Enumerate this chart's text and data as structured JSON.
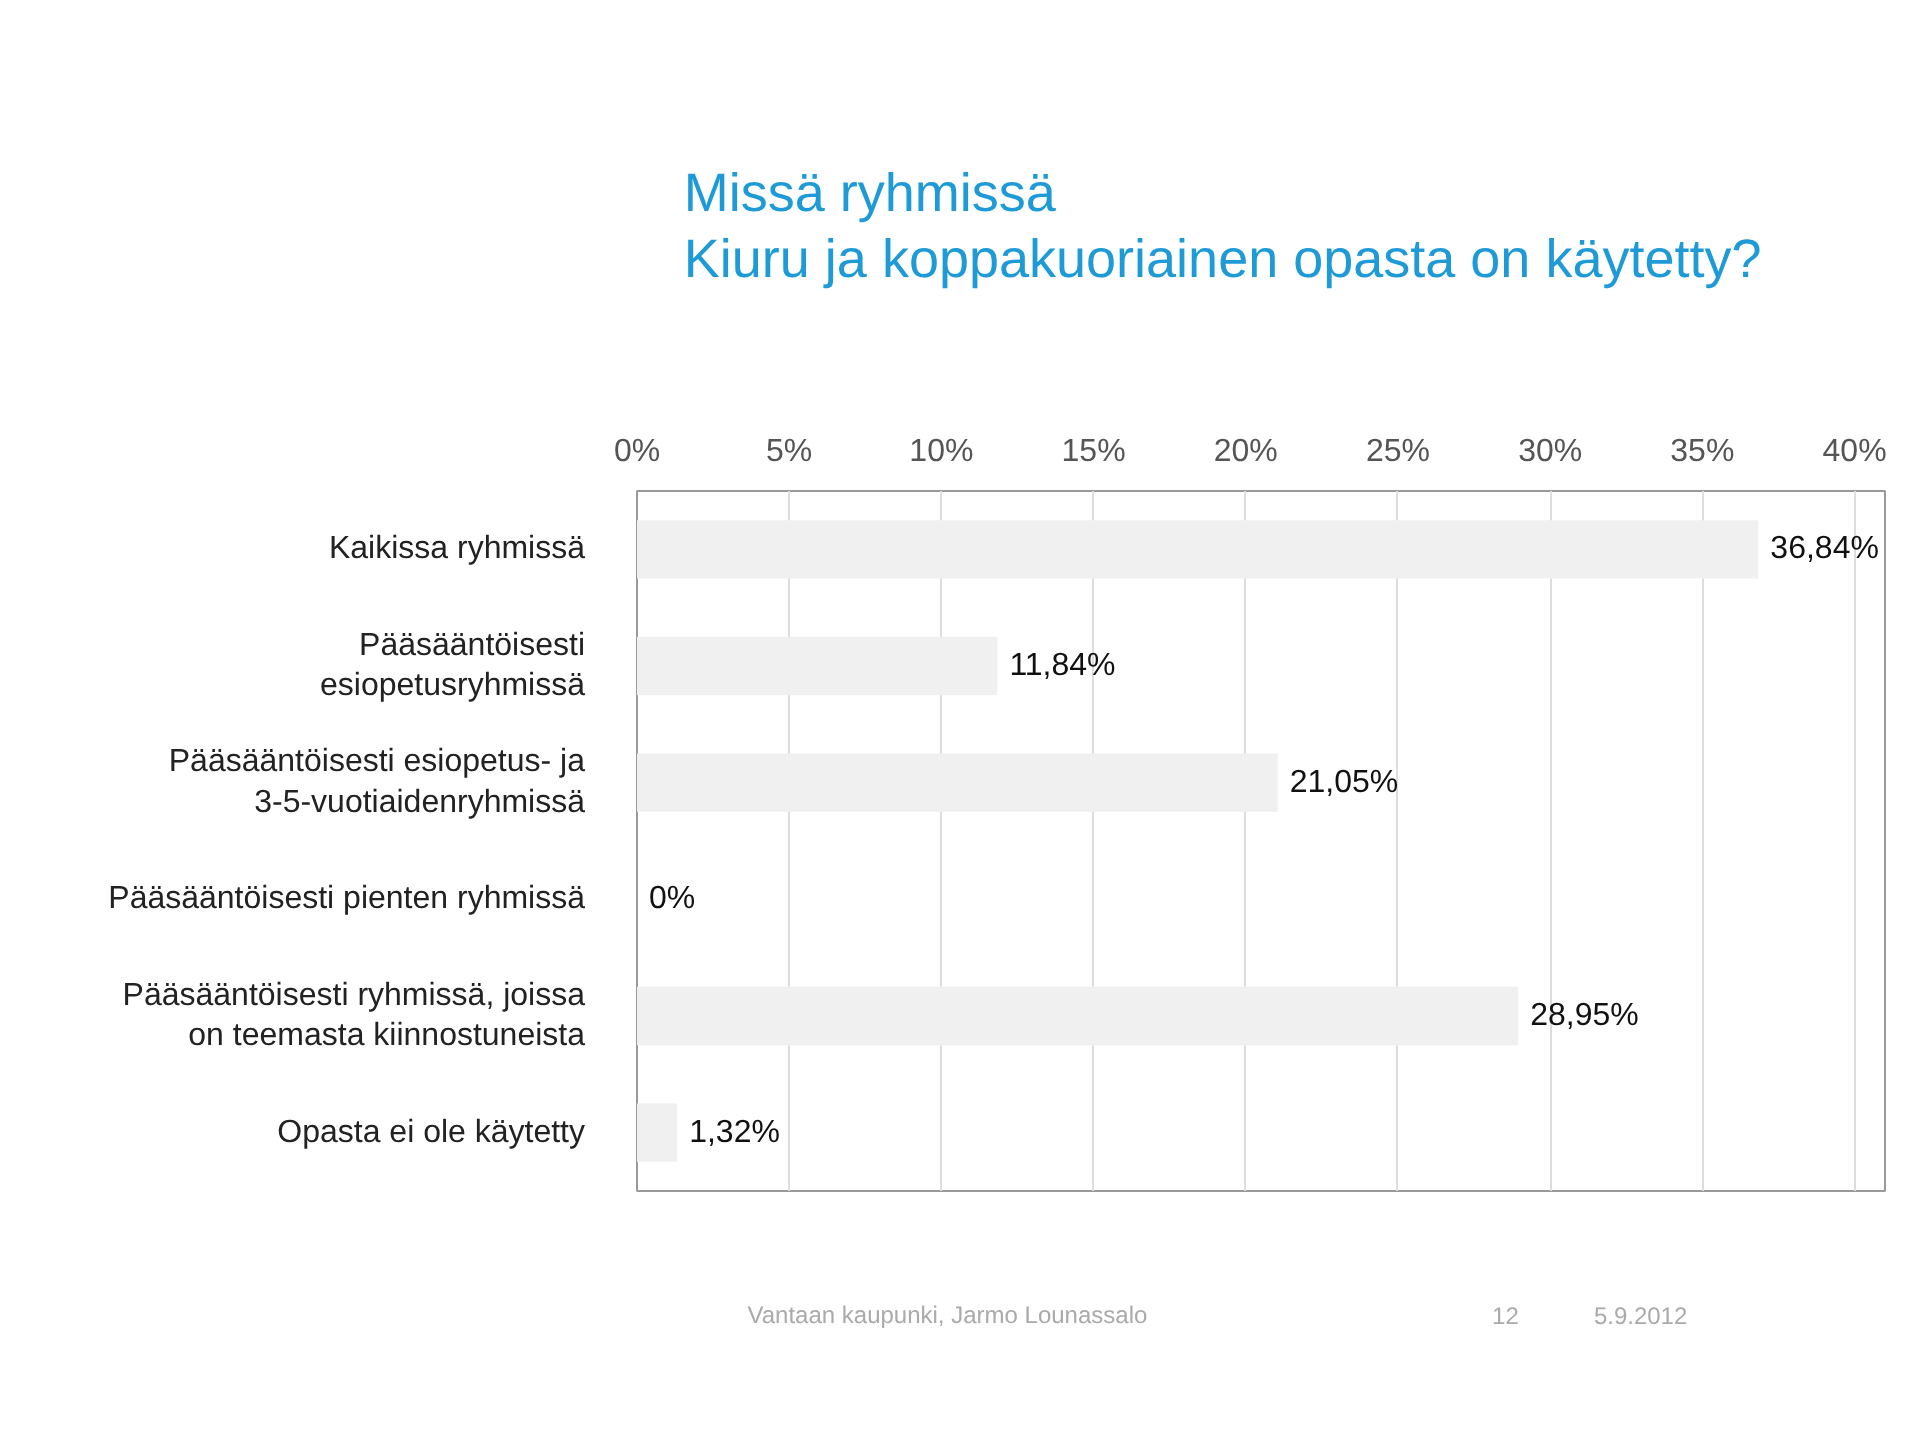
{
  "chart_data": {
    "type": "bar",
    "orientation": "horizontal",
    "title": "Missä ryhmissä\nKiuru ja koppakuoriainen opasta on käytetty?",
    "categories": [
      "Kaikissa ryhmissä",
      "Pääsääntöisesti\nesiopetusryhmissä",
      "Pääsääntöisesti esiopetus- ja\n3-5-vuotiaidenryhmissä",
      "Pääsääntöisesti pienten ryhmissä",
      "Pääsääntöisesti ryhmissä, joissa\non teemasta kiinnostuneista",
      "Opasta ei ole käytetty"
    ],
    "values": [
      36.84,
      11.84,
      21.05,
      0,
      28.95,
      1.32
    ],
    "value_labels": [
      "36,84%",
      "11,84%",
      "21,05%",
      "0%",
      "28,95%",
      "1,32%"
    ],
    "color": "#f0f0f0",
    "xlim": [
      0,
      41
    ],
    "xticks": [
      {
        "value": 0,
        "label": "0%"
      },
      {
        "value": 5,
        "label": "5%"
      },
      {
        "value": 10,
        "label": "10%"
      },
      {
        "value": 15,
        "label": "15%"
      },
      {
        "value": 20,
        "label": "20%"
      },
      {
        "value": 25,
        "label": "25%"
      },
      {
        "value": 30,
        "label": "30%"
      },
      {
        "value": 35,
        "label": "35%"
      },
      {
        "value": 40,
        "label": "40%"
      }
    ],
    "grid": "x",
    "annotations": [
      "Vantaan kaupunki, Jarmo Lounassalo",
      "12",
      "5.9.2012"
    ]
  }
}
